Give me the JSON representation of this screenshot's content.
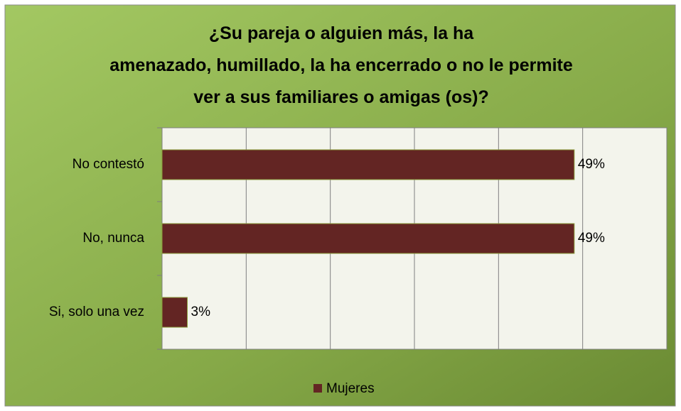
{
  "chart_data": {
    "type": "barh",
    "title": "¿Su pareja o alguien más, la ha\namenazado, humillado, la ha encerrado o no le permite\nver a sus familiares o amigas (os)?",
    "categories": [
      "No contestó",
      "No, nunca",
      "Si, solo una vez"
    ],
    "series": [
      {
        "name": "Mujeres",
        "color": "#632523",
        "values": [
          49,
          49,
          3
        ],
        "value_labels": [
          "49%",
          "49%",
          "3%"
        ]
      }
    ],
    "xlim": [
      0,
      60
    ],
    "xticks": [
      0,
      10,
      20,
      30,
      40,
      50,
      60
    ],
    "grid": true,
    "legend": "bottom"
  }
}
